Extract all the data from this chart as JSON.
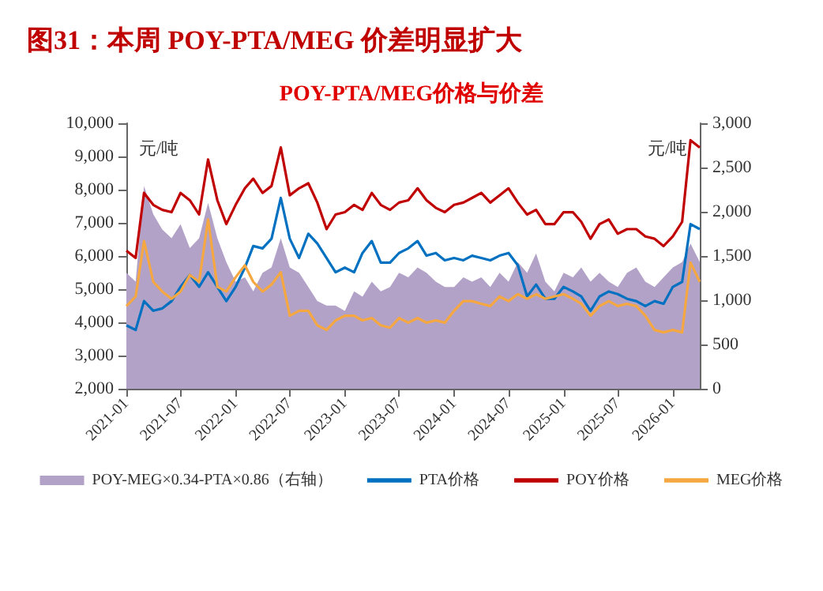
{
  "chart_data": {
    "type": "line",
    "title": "图31：本周 POY-PTA/MEG 价差明显扩大",
    "subtitle": "POY-PTA/MEG价格与价差",
    "ylabel": "元/吨",
    "y2label": "元/吨",
    "x": [
      "2021-01",
      "2021-02",
      "2021-03",
      "2021-04",
      "2021-05",
      "2021-06",
      "2021-07",
      "2021-08",
      "2021-09",
      "2021-10",
      "2021-11",
      "2021-12",
      "2022-01",
      "2022-02",
      "2022-03",
      "2022-04",
      "2022-05",
      "2022-06",
      "2022-07",
      "2022-08",
      "2022-09",
      "2022-10",
      "2022-11",
      "2022-12",
      "2023-01",
      "2023-02",
      "2023-03",
      "2023-04",
      "2023-05",
      "2023-06",
      "2023-07",
      "2023-08",
      "2023-09",
      "2023-10",
      "2023-11",
      "2023-12",
      "2024-01",
      "2024-02",
      "2024-03",
      "2024-04",
      "2024-05",
      "2024-06",
      "2024-07",
      "2024-08",
      "2024-09",
      "2024-10",
      "2024-11",
      "2024-12",
      "2025-01",
      "2025-02",
      "2025-03",
      "2025-04",
      "2025-05",
      "2025-06",
      "2025-07",
      "2025-08",
      "2025-09",
      "2025-10",
      "2025-11",
      "2025-12",
      "2026-01",
      "2026-02",
      "2026-03",
      "2026-04"
    ],
    "series": [
      {
        "name": "POY-MEG×0.34-PTA×0.86（右轴）",
        "type": "area",
        "axis": "y2",
        "color": "#b3a2c7",
        "values": [
          1310,
          1210,
          2290,
          1970,
          1800,
          1700,
          1860,
          1590,
          1700,
          2100,
          1700,
          1430,
          1210,
          1260,
          1100,
          1310,
          1370,
          1700,
          1370,
          1310,
          1150,
          990,
          940,
          940,
          880,
          1100,
          1040,
          1210,
          1100,
          1150,
          1310,
          1260,
          1370,
          1310,
          1210,
          1150,
          1150,
          1260,
          1210,
          1260,
          1150,
          1310,
          1210,
          1430,
          1310,
          1530,
          1210,
          1100,
          1310,
          1260,
          1370,
          1210,
          1310,
          1210,
          1150,
          1310,
          1370,
          1210,
          1150,
          1260,
          1370,
          1430,
          1640,
          1430
        ]
      },
      {
        "name": "PTA价格",
        "color": "#0070c0",
        "values": [
          3910,
          3770,
          4640,
          4350,
          4420,
          4640,
          5070,
          5430,
          5070,
          5510,
          5070,
          4640,
          5070,
          5650,
          6300,
          6230,
          6520,
          7750,
          6520,
          5940,
          6670,
          6380,
          5940,
          5510,
          5650,
          5510,
          6090,
          6450,
          5800,
          5800,
          6090,
          6230,
          6450,
          6010,
          6090,
          5870,
          5940,
          5870,
          6010,
          5940,
          5870,
          6010,
          6090,
          5720,
          4780,
          5140,
          4710,
          4710,
          5070,
          4930,
          4780,
          4350,
          4780,
          4930,
          4850,
          4710,
          4640,
          4490,
          4640,
          4560,
          5070,
          5220,
          6960,
          6810
        ]
      },
      {
        "name": "POY价格",
        "color": "#c00000",
        "values": [
          6160,
          5940,
          7900,
          7540,
          7390,
          7320,
          7900,
          7680,
          7250,
          8910,
          7680,
          6960,
          7540,
          8040,
          8330,
          7900,
          8110,
          9270,
          7830,
          8040,
          8190,
          7610,
          6810,
          7250,
          7320,
          7540,
          7390,
          7900,
          7540,
          7390,
          7610,
          7680,
          8040,
          7680,
          7450,
          7320,
          7540,
          7610,
          7750,
          7900,
          7610,
          7830,
          8040,
          7610,
          7250,
          7390,
          6960,
          6960,
          7320,
          7320,
          7030,
          6520,
          6960,
          7100,
          6670,
          6810,
          6810,
          6590,
          6520,
          6300,
          6590,
          7030,
          9490,
          9270
        ]
      },
      {
        "name": "MEG价格",
        "color": "#f5a742",
        "values": [
          4490,
          4780,
          6450,
          5220,
          4930,
          4710,
          4930,
          5430,
          5220,
          7100,
          5070,
          4930,
          5360,
          5720,
          5220,
          4930,
          5140,
          5510,
          4200,
          4350,
          4350,
          3910,
          3770,
          4060,
          4200,
          4200,
          4060,
          4130,
          3910,
          3840,
          4130,
          3990,
          4130,
          3990,
          4060,
          3990,
          4350,
          4640,
          4640,
          4560,
          4490,
          4780,
          4640,
          4850,
          4710,
          4850,
          4710,
          4780,
          4850,
          4710,
          4560,
          4200,
          4490,
          4640,
          4490,
          4560,
          4490,
          4200,
          3770,
          3700,
          3770,
          3700,
          5800,
          5220
        ]
      }
    ],
    "xlim": [
      "2021-01",
      "2026-04"
    ],
    "xticks": [
      "2021-01",
      "2021-07",
      "2022-01",
      "2022-07",
      "2023-01",
      "2023-07",
      "2024-01",
      "2024-07",
      "2025-01",
      "2025-07",
      "2026-01"
    ],
    "ylim": [
      2000,
      10000
    ],
    "yticks": [
      {
        "value": 2000,
        "label": "2,000"
      },
      {
        "value": 3000,
        "label": "3,000"
      },
      {
        "value": 4000,
        "label": "4,000"
      },
      {
        "value": 5000,
        "label": "5,000"
      },
      {
        "value": 6000,
        "label": "6,000"
      },
      {
        "value": 7000,
        "label": "7,000"
      },
      {
        "value": 8000,
        "label": "8,000"
      },
      {
        "value": 9000,
        "label": "9,000"
      },
      {
        "value": 10000,
        "label": "10,000"
      }
    ],
    "y2lim": [
      0,
      3000
    ],
    "y2ticks": [
      0,
      500,
      {
        "value": 1000,
        "label": "1,000"
      },
      {
        "value": 1500,
        "label": "1,500"
      },
      {
        "value": 2000,
        "label": "2,000"
      },
      {
        "value": 2500,
        "label": "2,500"
      },
      {
        "value": 3000,
        "label": "3,000"
      }
    ],
    "grid": false,
    "legend": "bottom",
    "marker": "none",
    "line_style": "solid"
  }
}
